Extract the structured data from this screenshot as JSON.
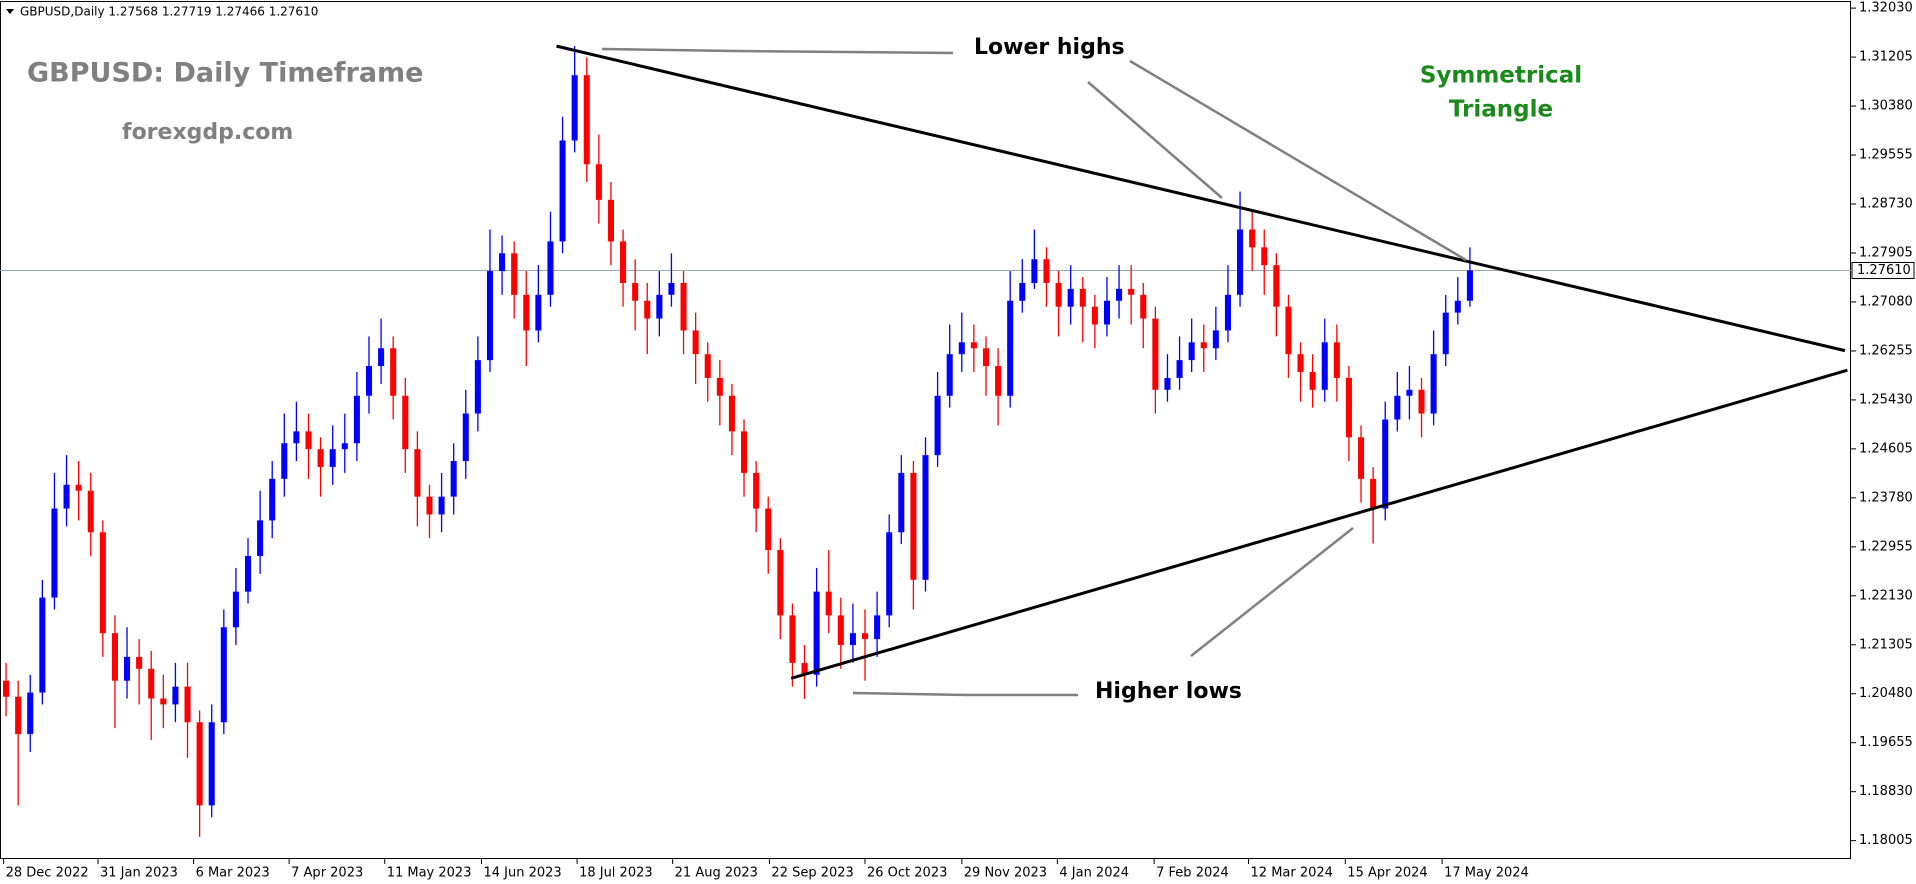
{
  "chart_data": {
    "type": "candlestick",
    "header": "GBPUSD,Daily  1.27568 1.27719 1.27466 1.27610",
    "title": "GBPUSD: Daily Timeframe",
    "subtitle": "forexgdp.com",
    "annotations": {
      "lower_highs": "Lower highs",
      "higher_lows": "Higher lows",
      "pattern": [
        "Symmetrical",
        "Triangle"
      ]
    },
    "up_color": "#0000ff",
    "down_color": "#ff0000",
    "grid": false,
    "xlim": [
      -0.5,
      152.5
    ],
    "xticks": [
      {
        "value": -0.2,
        "label": "28 Dec 2022"
      },
      {
        "value": 7.6,
        "label": "31 Jan 2023"
      },
      {
        "value": 15.5,
        "label": "6 Mar 2023"
      },
      {
        "value": 23.4,
        "label": "7 Apr 2023"
      },
      {
        "value": 31.3,
        "label": "11 May 2023"
      },
      {
        "value": 39.3,
        "label": "14 Jun 2023"
      },
      {
        "value": 47.2,
        "label": "18 Jul 2023"
      },
      {
        "value": 55.1,
        "label": "21 Aug 2023"
      },
      {
        "value": 63.1,
        "label": "22 Sep 2023"
      },
      {
        "value": 71,
        "label": "26 Oct 2023"
      },
      {
        "value": 79,
        "label": "29 Nov 2023"
      },
      {
        "value": 86.9,
        "label": "4 Jan 2024"
      },
      {
        "value": 94.9,
        "label": "7 Feb 2024"
      },
      {
        "value": 102.7,
        "label": "12 Mar 2024"
      },
      {
        "value": 110.7,
        "label": "15 Apr 2024"
      },
      {
        "value": 118.7,
        "label": "17 May 2024"
      }
    ],
    "ylim": [
      1.17696,
      1.32133
    ],
    "yticks": [
      {
        "value": 1.3203,
        "label": "1.32030"
      },
      {
        "value": 1.31205,
        "label": "1.31205"
      },
      {
        "value": 1.3038,
        "label": "1.30380"
      },
      {
        "value": 1.29555,
        "label": "1.29555"
      },
      {
        "value": 1.2873,
        "label": "1.28730"
      },
      {
        "value": 1.27905,
        "label": "1.27905"
      },
      {
        "value": 1.2708,
        "label": "1.27080"
      },
      {
        "value": 1.26255,
        "label": "1.26255"
      },
      {
        "value": 1.2543,
        "label": "1.25430"
      },
      {
        "value": 1.24605,
        "label": "1.24605"
      },
      {
        "value": 1.2378,
        "label": "1.23780"
      },
      {
        "value": 1.22955,
        "label": "1.22955"
      },
      {
        "value": 1.2213,
        "label": "1.22130"
      },
      {
        "value": 1.21305,
        "label": "1.21305"
      },
      {
        "value": 1.2048,
        "label": "1.20480"
      },
      {
        "value": 1.19655,
        "label": "1.19655"
      },
      {
        "value": 1.1883,
        "label": "1.18830"
      },
      {
        "value": 1.18005,
        "label": "1.18005"
      }
    ],
    "current_price": {
      "value": 1.2761,
      "label": "1.27610"
    },
    "trendlines": [
      {
        "color": "#000000",
        "points": [
          [
            45.5,
            1.3139
          ],
          [
            152,
            1.2626
          ]
        ]
      },
      {
        "color": "#000000",
        "points": [
          [
            64.9,
            1.2074
          ],
          [
            152.2,
            1.2593
          ]
        ]
      }
    ],
    "ohlc": [
      [
        1.207,
        1.21,
        1.201,
        1.2043
      ],
      [
        1.2043,
        1.207,
        1.186,
        1.198
      ],
      [
        1.198,
        1.208,
        1.195,
        1.205
      ],
      [
        1.205,
        1.224,
        1.203,
        1.221
      ],
      [
        1.221,
        1.242,
        1.219,
        1.236
      ],
      [
        1.236,
        1.245,
        1.233,
        1.24
      ],
      [
        1.24,
        1.244,
        1.234,
        1.239
      ],
      [
        1.239,
        1.242,
        1.228,
        1.232
      ],
      [
        1.232,
        1.234,
        1.211,
        1.215
      ],
      [
        1.215,
        1.218,
        1.199,
        1.207
      ],
      [
        1.207,
        1.216,
        1.204,
        1.211
      ],
      [
        1.211,
        1.214,
        1.203,
        1.209
      ],
      [
        1.209,
        1.212,
        1.197,
        1.204
      ],
      [
        1.204,
        1.208,
        1.199,
        1.203
      ],
      [
        1.203,
        1.21,
        1.2,
        1.206
      ],
      [
        1.206,
        1.21,
        1.194,
        1.2
      ],
      [
        1.2,
        1.202,
        1.1807,
        1.186
      ],
      [
        1.186,
        1.203,
        1.184,
        1.2
      ],
      [
        1.2,
        1.219,
        1.198,
        1.216
      ],
      [
        1.216,
        1.226,
        1.213,
        1.222
      ],
      [
        1.222,
        1.231,
        1.22,
        1.228
      ],
      [
        1.228,
        1.239,
        1.225,
        1.234
      ],
      [
        1.234,
        1.244,
        1.231,
        1.241
      ],
      [
        1.241,
        1.252,
        1.238,
        1.247
      ],
      [
        1.247,
        1.254,
        1.244,
        1.249
      ],
      [
        1.249,
        1.252,
        1.241,
        1.246
      ],
      [
        1.246,
        1.248,
        1.238,
        1.243
      ],
      [
        1.243,
        1.25,
        1.24,
        1.246
      ],
      [
        1.246,
        1.252,
        1.242,
        1.247
      ],
      [
        1.247,
        1.259,
        1.244,
        1.255
      ],
      [
        1.255,
        1.265,
        1.252,
        1.26
      ],
      [
        1.26,
        1.268,
        1.257,
        1.263
      ],
      [
        1.263,
        1.265,
        1.251,
        1.255
      ],
      [
        1.255,
        1.258,
        1.242,
        1.246
      ],
      [
        1.246,
        1.249,
        1.233,
        1.238
      ],
      [
        1.238,
        1.24,
        1.231,
        1.235
      ],
      [
        1.235,
        1.242,
        1.232,
        1.238
      ],
      [
        1.238,
        1.247,
        1.235,
        1.244
      ],
      [
        1.244,
        1.256,
        1.241,
        1.252
      ],
      [
        1.252,
        1.265,
        1.249,
        1.261
      ],
      [
        1.261,
        1.283,
        1.259,
        1.276
      ],
      [
        1.276,
        1.282,
        1.272,
        1.279
      ],
      [
        1.279,
        1.281,
        1.268,
        1.272
      ],
      [
        1.272,
        1.276,
        1.26,
        1.266
      ],
      [
        1.266,
        1.277,
        1.264,
        1.272
      ],
      [
        1.272,
        1.286,
        1.27,
        1.281
      ],
      [
        1.281,
        1.302,
        1.279,
        1.298
      ],
      [
        1.298,
        1.3139,
        1.296,
        1.309
      ],
      [
        1.309,
        1.312,
        1.291,
        1.294
      ],
      [
        1.294,
        1.299,
        1.284,
        1.288
      ],
      [
        1.288,
        1.291,
        1.277,
        1.281
      ],
      [
        1.281,
        1.283,
        1.27,
        1.274
      ],
      [
        1.274,
        1.278,
        1.266,
        1.271
      ],
      [
        1.271,
        1.274,
        1.262,
        1.268
      ],
      [
        1.268,
        1.276,
        1.265,
        1.272
      ],
      [
        1.272,
        1.279,
        1.27,
        1.274
      ],
      [
        1.274,
        1.276,
        1.262,
        1.266
      ],
      [
        1.266,
        1.269,
        1.257,
        1.262
      ],
      [
        1.262,
        1.264,
        1.254,
        1.258
      ],
      [
        1.258,
        1.261,
        1.25,
        1.255
      ],
      [
        1.255,
        1.257,
        1.245,
        1.249
      ],
      [
        1.249,
        1.251,
        1.238,
        1.242
      ],
      [
        1.242,
        1.244,
        1.232,
        1.236
      ],
      [
        1.236,
        1.238,
        1.225,
        1.229
      ],
      [
        1.229,
        1.231,
        1.214,
        1.218
      ],
      [
        1.218,
        1.22,
        1.206,
        1.21
      ],
      [
        1.21,
        1.213,
        1.2039,
        1.208
      ],
      [
        1.208,
        1.226,
        1.206,
        1.222
      ],
      [
        1.222,
        1.229,
        1.215,
        1.218
      ],
      [
        1.218,
        1.221,
        1.209,
        1.213
      ],
      [
        1.213,
        1.22,
        1.21,
        1.215
      ],
      [
        1.215,
        1.219,
        1.207,
        1.214
      ],
      [
        1.214,
        1.222,
        1.211,
        1.218
      ],
      [
        1.218,
        1.235,
        1.216,
        1.232
      ],
      [
        1.232,
        1.245,
        1.23,
        1.242
      ],
      [
        1.242,
        1.244,
        1.219,
        1.224
      ],
      [
        1.224,
        1.248,
        1.222,
        1.245
      ],
      [
        1.245,
        1.259,
        1.243,
        1.255
      ],
      [
        1.255,
        1.267,
        1.253,
        1.262
      ],
      [
        1.262,
        1.269,
        1.259,
        1.264
      ],
      [
        1.264,
        1.267,
        1.259,
        1.263
      ],
      [
        1.263,
        1.265,
        1.255,
        1.26
      ],
      [
        1.26,
        1.263,
        1.25,
        1.255
      ],
      [
        1.255,
        1.276,
        1.253,
        1.271
      ],
      [
        1.271,
        1.278,
        1.269,
        1.274
      ],
      [
        1.274,
        1.283,
        1.273,
        1.278
      ],
      [
        1.278,
        1.28,
        1.27,
        1.274
      ],
      [
        1.274,
        1.276,
        1.265,
        1.27
      ],
      [
        1.27,
        1.277,
        1.267,
        1.273
      ],
      [
        1.273,
        1.275,
        1.264,
        1.27
      ],
      [
        1.27,
        1.272,
        1.263,
        1.267
      ],
      [
        1.267,
        1.275,
        1.265,
        1.271
      ],
      [
        1.271,
        1.277,
        1.268,
        1.273
      ],
      [
        1.273,
        1.277,
        1.267,
        1.272
      ],
      [
        1.272,
        1.274,
        1.263,
        1.268
      ],
      [
        1.268,
        1.27,
        1.252,
        1.256
      ],
      [
        1.256,
        1.262,
        1.254,
        1.258
      ],
      [
        1.258,
        1.265,
        1.256,
        1.261
      ],
      [
        1.261,
        1.268,
        1.259,
        1.264
      ],
      [
        1.264,
        1.267,
        1.259,
        1.263
      ],
      [
        1.263,
        1.27,
        1.261,
        1.266
      ],
      [
        1.266,
        1.277,
        1.264,
        1.272
      ],
      [
        1.272,
        1.2894,
        1.27,
        1.283
      ],
      [
        1.283,
        1.286,
        1.276,
        1.28
      ],
      [
        1.28,
        1.283,
        1.272,
        1.277
      ],
      [
        1.277,
        1.279,
        1.265,
        1.27
      ],
      [
        1.27,
        1.272,
        1.258,
        1.262
      ],
      [
        1.262,
        1.264,
        1.254,
        1.259
      ],
      [
        1.259,
        1.262,
        1.253,
        1.256
      ],
      [
        1.256,
        1.268,
        1.254,
        1.264
      ],
      [
        1.264,
        1.267,
        1.254,
        1.258
      ],
      [
        1.258,
        1.26,
        1.244,
        1.248
      ],
      [
        1.248,
        1.25,
        1.237,
        1.241
      ],
      [
        1.241,
        1.243,
        1.2301,
        1.236
      ],
      [
        1.236,
        1.254,
        1.234,
        1.251
      ],
      [
        1.251,
        1.259,
        1.249,
        1.255
      ],
      [
        1.255,
        1.26,
        1.251,
        1.256
      ],
      [
        1.256,
        1.258,
        1.248,
        1.252
      ],
      [
        1.252,
        1.266,
        1.25,
        1.262
      ],
      [
        1.262,
        1.272,
        1.26,
        1.269
      ],
      [
        1.269,
        1.275,
        1.267,
        1.271
      ],
      [
        1.271,
        1.28,
        1.27,
        1.2761
      ]
    ]
  }
}
